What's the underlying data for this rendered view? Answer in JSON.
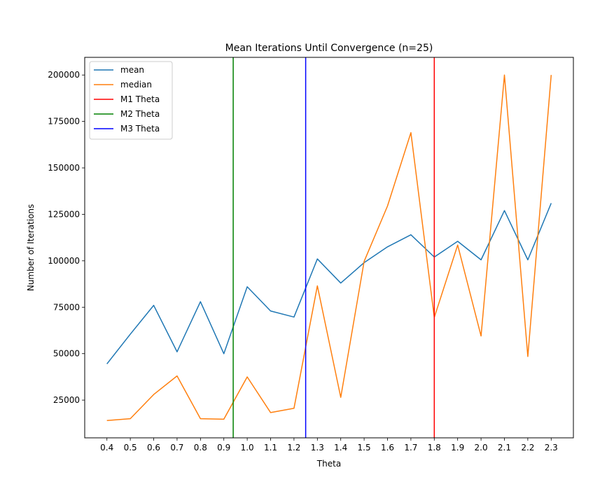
{
  "chart_data": {
    "type": "line",
    "title": "Mean Iterations Until Convergence (n=25)",
    "xlabel": "Theta",
    "ylabel": "Number of Iterations",
    "x": [
      0.4,
      0.5,
      0.6,
      0.7,
      0.8,
      0.9,
      1.0,
      1.1,
      1.2,
      1.3,
      1.4,
      1.5,
      1.6,
      1.7,
      1.8,
      1.9,
      2.0,
      2.1,
      2.2,
      2.3
    ],
    "x_tick_labels": [
      "0.4",
      "0.5",
      "0.6",
      "0.7",
      "0.8",
      "0.9",
      "1.0",
      "1.1",
      "1.2",
      "1.3",
      "1.4",
      "1.5",
      "1.6",
      "1.7",
      "1.8",
      "1.9",
      "2.0",
      "2.1",
      "2.2",
      "2.3"
    ],
    "y_ticks": [
      25000,
      50000,
      75000,
      100000,
      125000,
      150000,
      175000,
      200000
    ],
    "y_tick_labels": [
      "25000",
      "50000",
      "75000",
      "100000",
      "125000",
      "150000",
      "175000",
      "200000"
    ],
    "xlim": [
      0.305,
      2.395
    ],
    "ylim": [
      4700,
      209500
    ],
    "series": [
      {
        "name": "mean",
        "color": "#1f77b4",
        "values": [
          44500,
          60500,
          76000,
          51000,
          78000,
          50000,
          86000,
          73000,
          69700,
          101000,
          88000,
          99000,
          107500,
          114000,
          102000,
          110500,
          100500,
          127000,
          100500,
          131000
        ]
      },
      {
        "name": "median",
        "color": "#ff7f0e",
        "values": [
          14000,
          15000,
          28000,
          38000,
          15000,
          14700,
          37500,
          18300,
          20600,
          86500,
          26500,
          99700,
          129500,
          169000,
          69500,
          108500,
          59500,
          200000,
          48500,
          200000
        ]
      }
    ],
    "vlines": [
      {
        "name": "M1 Theta",
        "x": 1.8,
        "color": "#ff0000"
      },
      {
        "name": "M2 Theta",
        "x": 0.94,
        "color": "#008000"
      },
      {
        "name": "M3 Theta",
        "x": 1.25,
        "color": "#0000ff"
      }
    ],
    "legend": {
      "position": "upper-left",
      "entries": [
        {
          "label": "mean",
          "color": "#1f77b4"
        },
        {
          "label": "median",
          "color": "#ff7f0e"
        },
        {
          "label": "M1 Theta",
          "color": "#ff0000"
        },
        {
          "label": "M2 Theta",
          "color": "#008000"
        },
        {
          "label": "M3 Theta",
          "color": "#0000ff"
        }
      ]
    },
    "grid": false
  }
}
